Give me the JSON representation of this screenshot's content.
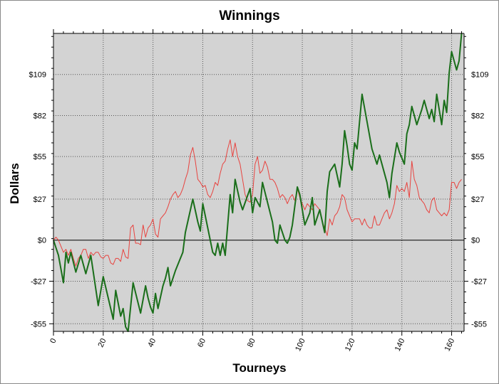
{
  "chart_data": {
    "type": "line",
    "title": "Winnings",
    "xlabel": "Tourneys",
    "ylabel": "Dollars",
    "xlim": [
      0,
      165
    ],
    "ylim": [
      -60,
      136
    ],
    "x_ticks": [
      0,
      20,
      40,
      60,
      80,
      100,
      120,
      140,
      160
    ],
    "y_ticks": [
      -55,
      -27,
      0,
      27,
      55,
      82,
      109
    ],
    "y_tick_labels": [
      "-$55",
      "-$27",
      "$0",
      "$27",
      "$55",
      "$82",
      "$109"
    ],
    "grid": true,
    "background": "#d3d3d3",
    "series": [
      {
        "color": "#1a6e1a",
        "width": 2,
        "points": [
          [
            0,
            0
          ],
          [
            2,
            -10
          ],
          [
            4,
            -28
          ],
          [
            5,
            -8
          ],
          [
            6,
            -15
          ],
          [
            7,
            -8
          ],
          [
            9,
            -21
          ],
          [
            11,
            -10
          ],
          [
            13,
            -22
          ],
          [
            15,
            -10
          ],
          [
            18,
            -43
          ],
          [
            20,
            -24
          ],
          [
            24,
            -52
          ],
          [
            25,
            -33
          ],
          [
            27,
            -50
          ],
          [
            28,
            -45
          ],
          [
            29,
            -57
          ],
          [
            30,
            -60
          ],
          [
            32,
            -28
          ],
          [
            35,
            -48
          ],
          [
            37,
            -30
          ],
          [
            38,
            -38
          ],
          [
            39,
            -44
          ],
          [
            40,
            -48
          ],
          [
            41,
            -35
          ],
          [
            42,
            -45
          ],
          [
            44,
            -30
          ],
          [
            45,
            -25
          ],
          [
            46,
            -18
          ],
          [
            47,
            -30
          ],
          [
            49,
            -20
          ],
          [
            51,
            -12
          ],
          [
            52,
            -8
          ],
          [
            53,
            5
          ],
          [
            56,
            27
          ],
          [
            58,
            12
          ],
          [
            59,
            6
          ],
          [
            60,
            24
          ],
          [
            64,
            -8
          ],
          [
            65,
            -10
          ],
          [
            66,
            -2
          ],
          [
            67,
            -10
          ],
          [
            68,
            -2
          ],
          [
            69,
            -10
          ],
          [
            71,
            30
          ],
          [
            72,
            18
          ],
          [
            73,
            40
          ],
          [
            75,
            25
          ],
          [
            76,
            20
          ],
          [
            79,
            34
          ],
          [
            80,
            18
          ],
          [
            81,
            28
          ],
          [
            83,
            22
          ],
          [
            84,
            38
          ],
          [
            88,
            12
          ],
          [
            89,
            0
          ],
          [
            90,
            -2
          ],
          [
            91,
            10
          ],
          [
            93,
            0
          ],
          [
            94,
            -2
          ],
          [
            95,
            2
          ],
          [
            96,
            10
          ],
          [
            98,
            35
          ],
          [
            99,
            30
          ],
          [
            101,
            10
          ],
          [
            103,
            18
          ],
          [
            104,
            28
          ],
          [
            105,
            10
          ],
          [
            106,
            15
          ],
          [
            107,
            20
          ],
          [
            109,
            5
          ],
          [
            110,
            32
          ],
          [
            111,
            45
          ],
          [
            113,
            50
          ],
          [
            115,
            35
          ],
          [
            116,
            50
          ],
          [
            117,
            72
          ],
          [
            118,
            62
          ],
          [
            119,
            50
          ],
          [
            120,
            46
          ],
          [
            121,
            64
          ],
          [
            122,
            60
          ],
          [
            124,
            96
          ],
          [
            128,
            60
          ],
          [
            130,
            50
          ],
          [
            131,
            56
          ],
          [
            133,
            44
          ],
          [
            134,
            38
          ],
          [
            135,
            28
          ],
          [
            136,
            44
          ],
          [
            138,
            64
          ],
          [
            139,
            58
          ],
          [
            141,
            50
          ],
          [
            142,
            70
          ],
          [
            143,
            76
          ],
          [
            144,
            88
          ],
          [
            146,
            76
          ],
          [
            148,
            86
          ],
          [
            149,
            92
          ],
          [
            151,
            80
          ],
          [
            152,
            86
          ],
          [
            153,
            78
          ],
          [
            154,
            96
          ],
          [
            156,
            76
          ],
          [
            157,
            92
          ],
          [
            158,
            84
          ],
          [
            159,
            110
          ],
          [
            160,
            124
          ],
          [
            161,
            118
          ],
          [
            162,
            112
          ],
          [
            163,
            118
          ],
          [
            164,
            136
          ]
        ]
      },
      {
        "color": "#e8433f",
        "width": 1,
        "points": [
          [
            0,
            0
          ],
          [
            1,
            2
          ],
          [
            2,
            0
          ],
          [
            3,
            -4
          ],
          [
            4,
            -8
          ],
          [
            5,
            -6
          ],
          [
            6,
            -10
          ],
          [
            7,
            -6
          ],
          [
            8,
            -12
          ],
          [
            9,
            -17
          ],
          [
            10,
            -12
          ],
          [
            11,
            -10
          ],
          [
            12,
            -6
          ],
          [
            13,
            -6
          ],
          [
            14,
            -12
          ],
          [
            15,
            -8
          ],
          [
            16,
            -10
          ],
          [
            17,
            -8
          ],
          [
            18,
            -8
          ],
          [
            19,
            -11
          ],
          [
            20,
            -12
          ],
          [
            21,
            -10
          ],
          [
            22,
            -10
          ],
          [
            23,
            -15
          ],
          [
            24,
            -16
          ],
          [
            25,
            -12
          ],
          [
            26,
            -12
          ],
          [
            27,
            -14
          ],
          [
            28,
            -6
          ],
          [
            29,
            -11
          ],
          [
            30,
            -12
          ],
          [
            31,
            8
          ],
          [
            32,
            10
          ],
          [
            33,
            -2
          ],
          [
            34,
            -2
          ],
          [
            35,
            -3
          ],
          [
            36,
            10
          ],
          [
            37,
            2
          ],
          [
            38,
            8
          ],
          [
            39,
            10
          ],
          [
            40,
            14
          ],
          [
            41,
            4
          ],
          [
            42,
            2
          ],
          [
            43,
            14
          ],
          [
            44,
            16
          ],
          [
            45,
            18
          ],
          [
            46,
            22
          ],
          [
            47,
            27
          ],
          [
            48,
            30
          ],
          [
            49,
            32
          ],
          [
            50,
            28
          ],
          [
            51,
            30
          ],
          [
            52,
            34
          ],
          [
            53,
            40
          ],
          [
            54,
            45
          ],
          [
            55,
            56
          ],
          [
            56,
            61
          ],
          [
            57,
            52
          ],
          [
            58,
            40
          ],
          [
            59,
            38
          ],
          [
            60,
            35
          ],
          [
            61,
            36
          ],
          [
            62,
            30
          ],
          [
            63,
            28
          ],
          [
            64,
            32
          ],
          [
            65,
            38
          ],
          [
            66,
            36
          ],
          [
            67,
            44
          ],
          [
            68,
            50
          ],
          [
            69,
            52
          ],
          [
            70,
            60
          ],
          [
            71,
            66
          ],
          [
            72,
            55
          ],
          [
            73,
            64
          ],
          [
            74,
            55
          ],
          [
            75,
            50
          ],
          [
            76,
            40
          ],
          [
            77,
            30
          ],
          [
            78,
            26
          ],
          [
            79,
            25
          ],
          [
            80,
            30
          ],
          [
            81,
            50
          ],
          [
            82,
            55
          ],
          [
            83,
            44
          ],
          [
            84,
            46
          ],
          [
            85,
            52
          ],
          [
            86,
            48
          ],
          [
            87,
            40
          ],
          [
            88,
            40
          ],
          [
            89,
            38
          ],
          [
            90,
            34
          ],
          [
            91,
            28
          ],
          [
            92,
            30
          ],
          [
            93,
            28
          ],
          [
            94,
            24
          ],
          [
            95,
            28
          ],
          [
            96,
            30
          ],
          [
            97,
            26
          ],
          [
            98,
            34
          ],
          [
            99,
            28
          ],
          [
            100,
            24
          ],
          [
            101,
            20
          ],
          [
            102,
            24
          ],
          [
            103,
            22
          ],
          [
            104,
            20
          ],
          [
            105,
            24
          ],
          [
            106,
            22
          ],
          [
            107,
            20
          ],
          [
            108,
            12
          ],
          [
            109,
            8
          ],
          [
            110,
            3
          ],
          [
            111,
            14
          ],
          [
            112,
            10
          ],
          [
            113,
            16
          ],
          [
            114,
            18
          ],
          [
            115,
            22
          ],
          [
            116,
            30
          ],
          [
            117,
            28
          ],
          [
            118,
            20
          ],
          [
            119,
            16
          ],
          [
            120,
            12
          ],
          [
            121,
            14
          ],
          [
            122,
            14
          ],
          [
            123,
            14
          ],
          [
            124,
            10
          ],
          [
            125,
            14
          ],
          [
            126,
            10
          ],
          [
            127,
            8
          ],
          [
            128,
            8
          ],
          [
            129,
            16
          ],
          [
            130,
            10
          ],
          [
            131,
            10
          ],
          [
            132,
            14
          ],
          [
            133,
            18
          ],
          [
            134,
            20
          ],
          [
            135,
            14
          ],
          [
            136,
            18
          ],
          [
            137,
            24
          ],
          [
            138,
            36
          ],
          [
            139,
            32
          ],
          [
            140,
            34
          ],
          [
            141,
            32
          ],
          [
            142,
            38
          ],
          [
            143,
            28
          ],
          [
            144,
            52
          ],
          [
            145,
            40
          ],
          [
            146,
            36
          ],
          [
            147,
            28
          ],
          [
            148,
            26
          ],
          [
            149,
            24
          ],
          [
            150,
            20
          ],
          [
            151,
            18
          ],
          [
            152,
            26
          ],
          [
            153,
            28
          ],
          [
            154,
            20
          ],
          [
            155,
            18
          ],
          [
            156,
            16
          ],
          [
            157,
            18
          ],
          [
            158,
            16
          ],
          [
            159,
            20
          ],
          [
            160,
            38
          ],
          [
            161,
            38
          ],
          [
            162,
            34
          ],
          [
            163,
            38
          ],
          [
            164,
            40
          ]
        ]
      }
    ]
  }
}
